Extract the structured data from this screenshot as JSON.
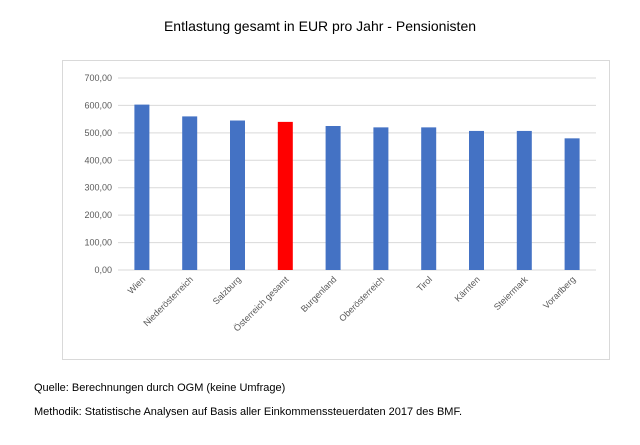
{
  "chart_data": {
    "type": "bar",
    "title": "Entlastung gesamt in EUR pro Jahr - Pensionisten",
    "categories": [
      "Wien",
      "Niederösterreich",
      "Salzburg",
      "Österreich gesamt",
      "Burgenland",
      "Oberösterreich",
      "Tirol",
      "Kärnten",
      "Steiermark",
      "Vorarlberg"
    ],
    "values": [
      603,
      560,
      545,
      540,
      525,
      520,
      520,
      507,
      507,
      480
    ],
    "highlight_category": "Österreich gesamt",
    "bar_color": "#4472C4",
    "highlight_color": "#FF0000",
    "ylim": [
      0,
      700
    ],
    "yticks": [
      "0,00",
      "100,00",
      "200,00",
      "300,00",
      "400,00",
      "500,00",
      "600,00",
      "700,00"
    ],
    "grid": true,
    "legend": "none"
  },
  "footer": {
    "source": "Quelle: Berechnungen durch OGM (keine Umfrage)",
    "method": "Methodik: Statistische Analysen auf Basis aller Einkommenssteuerdaten 2017 des BMF."
  }
}
